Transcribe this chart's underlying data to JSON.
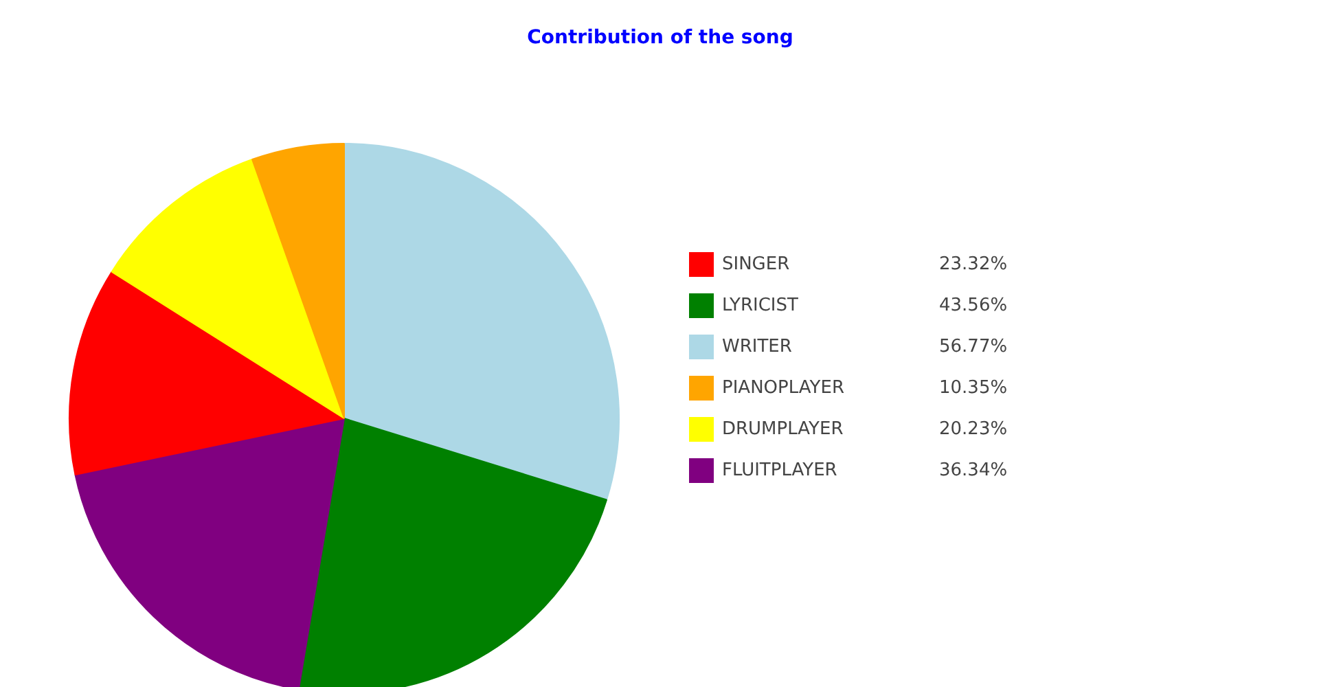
{
  "chart_data": {
    "type": "pie",
    "title": "Contribution of the song",
    "categories": [
      "SINGER",
      "LYRICIST",
      "WRITER",
      "PIANOPLAYER",
      "DRUMPLAYER",
      "FLUITPLAYER"
    ],
    "values": [
      23.32,
      43.56,
      56.77,
      10.35,
      20.23,
      36.34
    ],
    "value_labels": [
      "23.32%",
      "43.56%",
      "56.77%",
      "10.35%",
      "20.23%",
      "36.34%"
    ],
    "colors": [
      "#ff0000",
      "#008000",
      "#add8e6",
      "#ffa500",
      "#ffff00",
      "#800080"
    ],
    "legend": "right"
  }
}
